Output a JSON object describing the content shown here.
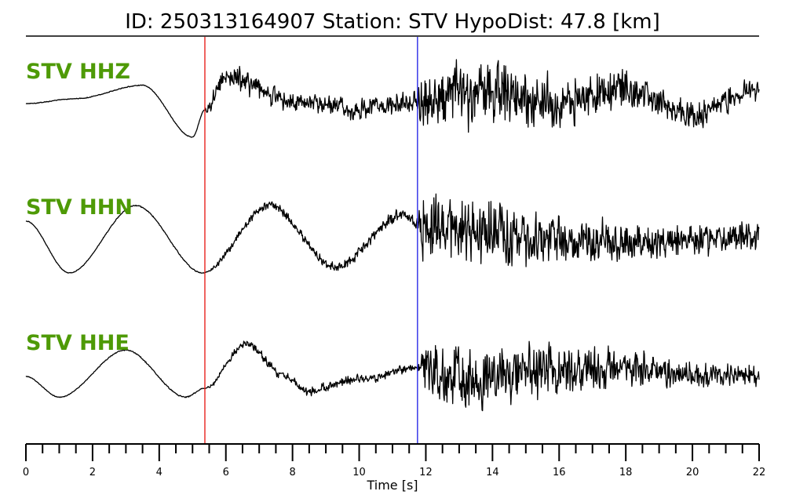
{
  "header": {
    "title": "ID: 250313164907   Station: STV   HypoDist:    47.8 [km]"
  },
  "chart_data": {
    "type": "line",
    "xlabel": "Time [s]",
    "xlim": [
      0,
      22
    ],
    "major_ticks": [
      0,
      2,
      4,
      6,
      8,
      10,
      12,
      14,
      16,
      18,
      20,
      22
    ],
    "minor_tick_step": 0.5,
    "tick_labels": [
      "0",
      "2",
      "4",
      "6",
      "8",
      "10",
      "12",
      "14",
      "16",
      "18",
      "20",
      "22"
    ],
    "grid": false,
    "picks": [
      {
        "time": 5.37,
        "color": "#e8231e"
      },
      {
        "time": 11.75,
        "color": "#2b2be6"
      }
    ],
    "label_color": "#4e9a06",
    "traces": [
      {
        "label": "STV HHZ",
        "lowfreq": [
          [
            0,
            0.0
          ],
          [
            1.5,
            0.08
          ],
          [
            3.5,
            0.3
          ],
          [
            5.0,
            -0.55
          ],
          [
            5.37,
            -0.1
          ],
          [
            6.0,
            0.45
          ],
          [
            8.0,
            0.05
          ],
          [
            10.0,
            -0.1
          ],
          [
            11.75,
            0.05
          ],
          [
            14.0,
            0.2
          ],
          [
            16.0,
            0.0
          ],
          [
            18.0,
            0.25
          ],
          [
            20.0,
            -0.2
          ],
          [
            22.0,
            0.25
          ]
        ],
        "envelope": [
          [
            0,
            0.012
          ],
          [
            5.37,
            0.012
          ],
          [
            5.4,
            0.3
          ],
          [
            7.0,
            0.4
          ],
          [
            9.0,
            0.3
          ],
          [
            11.75,
            0.38
          ],
          [
            11.9,
            1.0
          ],
          [
            13.5,
            1.0
          ],
          [
            15.0,
            0.9
          ],
          [
            17.0,
            0.7
          ],
          [
            20.0,
            0.45
          ],
          [
            22.0,
            0.35
          ]
        ]
      },
      {
        "label": "STV HHN",
        "lowfreq": [
          [
            0,
            0.3
          ],
          [
            1.3,
            -0.55
          ],
          [
            3.3,
            0.55
          ],
          [
            5.3,
            -0.55
          ],
          [
            7.3,
            0.55
          ],
          [
            9.3,
            -0.45
          ],
          [
            11.3,
            0.4
          ],
          [
            11.75,
            0.25
          ],
          [
            13.5,
            0.1
          ],
          [
            16.0,
            0.0
          ],
          [
            19.0,
            -0.05
          ],
          [
            22.0,
            0.05
          ]
        ],
        "envelope": [
          [
            0,
            0.012
          ],
          [
            5.37,
            0.02
          ],
          [
            6.0,
            0.12
          ],
          [
            9.0,
            0.14
          ],
          [
            11.75,
            0.2
          ],
          [
            11.9,
            1.0
          ],
          [
            14.0,
            1.0
          ],
          [
            16.0,
            0.75
          ],
          [
            18.5,
            0.55
          ],
          [
            22.0,
            0.45
          ]
        ]
      },
      {
        "label": "STV HHE",
        "lowfreq": [
          [
            0,
            0.0
          ],
          [
            1.0,
            -0.35
          ],
          [
            3.0,
            0.45
          ],
          [
            4.8,
            -0.35
          ],
          [
            5.37,
            -0.2
          ],
          [
            6.6,
            0.55
          ],
          [
            7.8,
            0.0
          ],
          [
            8.4,
            -0.25
          ],
          [
            10.0,
            -0.05
          ],
          [
            11.75,
            0.15
          ],
          [
            13.5,
            -0.1
          ],
          [
            15.5,
            0.05
          ],
          [
            17.5,
            0.15
          ],
          [
            20.0,
            0.05
          ],
          [
            22.0,
            0.0
          ]
        ],
        "envelope": [
          [
            0,
            0.012
          ],
          [
            5.37,
            0.02
          ],
          [
            5.6,
            0.1
          ],
          [
            8.0,
            0.15
          ],
          [
            11.75,
            0.15
          ],
          [
            11.9,
            0.85
          ],
          [
            13.5,
            1.0
          ],
          [
            15.0,
            1.0
          ],
          [
            17.0,
            0.7
          ],
          [
            20.0,
            0.4
          ],
          [
            22.0,
            0.35
          ]
        ]
      }
    ]
  }
}
